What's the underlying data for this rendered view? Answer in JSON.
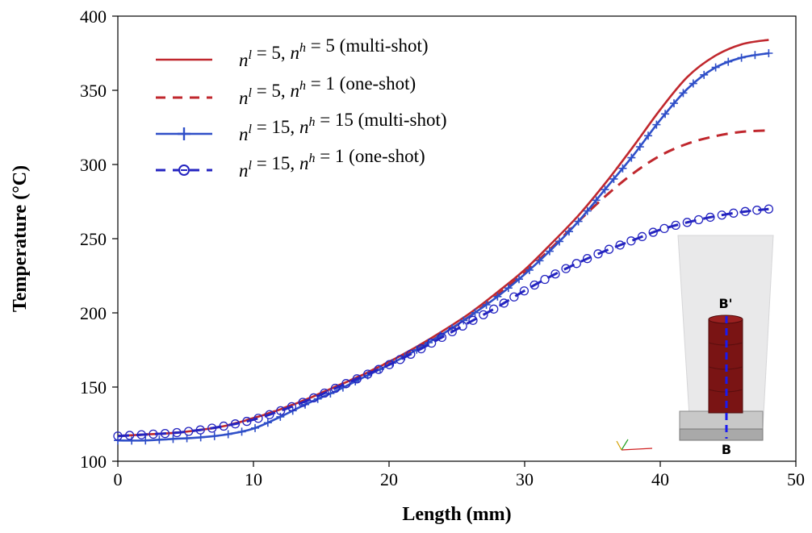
{
  "chart_data": {
    "type": "line",
    "title": "",
    "xlabel": "Length (mm)",
    "ylabel": "Temperature (°C)",
    "xlim": [
      0,
      50
    ],
    "ylim": [
      100,
      400
    ],
    "xticks": [
      0,
      10,
      20,
      30,
      40,
      50
    ],
    "yticks": [
      100,
      150,
      200,
      250,
      300,
      350,
      400
    ],
    "grid": false,
    "legend_position": "top-left",
    "x": [
      0,
      2,
      4,
      6,
      8,
      10,
      12,
      14,
      16,
      18,
      20,
      22,
      24,
      26,
      28,
      30,
      32,
      34,
      36,
      38,
      40,
      42,
      44,
      46,
      48
    ],
    "series": [
      {
        "name": "n^l = 5, n^h = 5 (multi-shot)",
        "legend": {
          "nl": "5",
          "nh": "5",
          "mode": "(multi-shot)"
        },
        "color": "#c0272d",
        "style": "solid",
        "marker": "none",
        "values": [
          117,
          118,
          119,
          121,
          124,
          129,
          135,
          142,
          150,
          158,
          167,
          177,
          188,
          200,
          214,
          229,
          247,
          266,
          288,
          312,
          337,
          359,
          373,
          381,
          384
        ]
      },
      {
        "name": "n^l = 5, n^h = 1 (one-shot)",
        "legend": {
          "nl": "5",
          "nh": "1",
          "mode": "(one-shot)"
        },
        "color": "#c0272d",
        "style": "dashed",
        "marker": "none",
        "values": [
          117,
          118,
          119,
          121,
          124,
          129,
          135,
          142,
          150,
          158,
          167,
          176,
          186,
          198,
          212,
          227,
          244,
          262,
          279,
          294,
          306,
          314,
          319,
          322,
          323
        ]
      },
      {
        "name": "n^l = 15, n^h = 15 (multi-shot)",
        "legend": {
          "nl": "15",
          "nh": "15",
          "mode": "(multi-shot)"
        },
        "color": "#2f4fc8",
        "style": "solid",
        "marker": "plus",
        "values": [
          114,
          114,
          115,
          116,
          118,
          122,
          130,
          139,
          147,
          156,
          165,
          175,
          186,
          198,
          211,
          226,
          243,
          262,
          284,
          306,
          330,
          351,
          365,
          372,
          375
        ]
      },
      {
        "name": "n^l = 15, n^h = 1 (one-shot)",
        "legend": {
          "nl": "15",
          "nh": "1",
          "mode": "(one-shot)"
        },
        "color": "#2424c0",
        "style": "dashed",
        "marker": "circle",
        "values": [
          117,
          118,
          119,
          121,
          124,
          128,
          134,
          141,
          149,
          157,
          165,
          174,
          184,
          194,
          204,
          215,
          225,
          234,
          242,
          249,
          256,
          261,
          265,
          268,
          270
        ]
      }
    ],
    "inset": {
      "label_top": "B'",
      "label_bottom": "B"
    }
  }
}
